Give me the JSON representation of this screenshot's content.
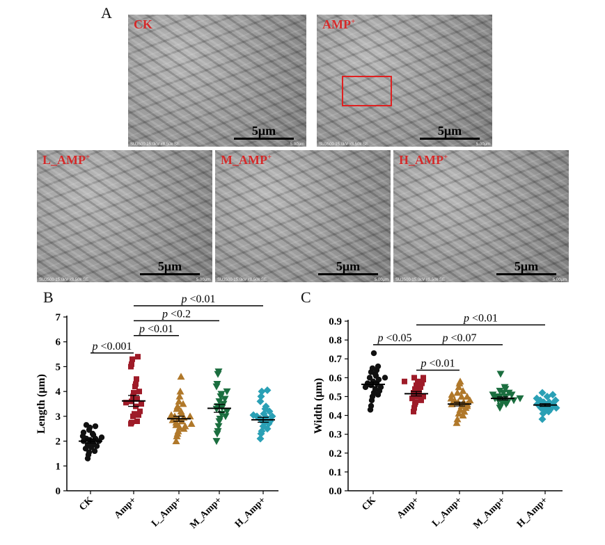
{
  "panels": {
    "A": "A",
    "B": "B",
    "C": "C"
  },
  "sem_images": [
    {
      "label": "CK",
      "sup": "",
      "scale": "5μm",
      "info_left": "SU3500 15.0kV x8.50k SE",
      "info_right": "5.00μm"
    },
    {
      "label": "AMP",
      "sup": "+",
      "scale": "5μm",
      "info_left": "SU3500 15.0kV x8.50k SE",
      "info_right": "5.00μm"
    },
    {
      "label": "L_AMP",
      "sup": "+",
      "scale": "5μm",
      "info_left": "SU3500 15.0kV x8.50k SE",
      "info_right": "5.00μm"
    },
    {
      "label": "M_AMP",
      "sup": "+",
      "scale": "5μm",
      "info_left": "SU3500 15.0kV x8.50k SE",
      "info_right": "5.00μm"
    },
    {
      "label": "H_AMP",
      "sup": "+",
      "scale": "5μm",
      "info_left": "SU3500 15.0kV x8.50k SE",
      "info_right": "5.00μm"
    }
  ],
  "colors": {
    "CK": "#111111",
    "Amp+": "#9e1b28",
    "L_Amp+": "#b0782a",
    "M_Amp+": "#1b6e3f",
    "H_Amp+": "#2aa0b5",
    "label_red": "#d42a2a"
  },
  "chart_data": [
    {
      "type": "scatter",
      "panel": "B",
      "ylabel": "Length (μm)",
      "ylim": [
        0,
        7
      ],
      "yticks": [
        "0",
        "1",
        "2",
        "3",
        "4",
        "5",
        "6",
        "7"
      ],
      "categories": [
        "CK",
        "Amp+",
        "L_Amp+",
        "M_Amp+",
        "H_Amp+"
      ],
      "markers": [
        "circle",
        "square",
        "triangle-up",
        "triangle-down",
        "diamond"
      ],
      "means": [
        2.0,
        3.62,
        2.9,
        3.32,
        2.86
      ],
      "sem": [
        0.08,
        0.22,
        0.1,
        0.16,
        0.1
      ],
      "series": [
        {
          "values": [
            1.3,
            1.45,
            1.55,
            1.6,
            1.7,
            1.75,
            1.8,
            1.85,
            1.9,
            1.95,
            2.0,
            2.0,
            2.05,
            2.1,
            2.1,
            2.15,
            2.2,
            2.25,
            2.3,
            2.35,
            2.45,
            2.55,
            2.6,
            2.65
          ]
        },
        {
          "values": [
            2.7,
            2.75,
            2.8,
            3.0,
            3.05,
            3.1,
            3.2,
            3.4,
            3.5,
            3.55,
            3.6,
            3.7,
            3.8,
            3.95,
            4.0,
            4.2,
            4.3,
            4.5,
            5.0,
            5.1,
            5.3,
            5.4
          ]
        },
        {
          "values": [
            2.0,
            2.2,
            2.3,
            2.4,
            2.5,
            2.55,
            2.6,
            2.65,
            2.7,
            2.75,
            2.8,
            2.85,
            2.9,
            2.95,
            3.0,
            3.0,
            3.05,
            3.1,
            3.2,
            3.3,
            3.4,
            3.5,
            3.6,
            3.8,
            4.0,
            4.6
          ]
        },
        {
          "values": [
            2.0,
            2.3,
            2.4,
            2.6,
            2.8,
            2.9,
            3.0,
            3.1,
            3.2,
            3.3,
            3.35,
            3.4,
            3.5,
            3.6,
            3.7,
            3.8,
            3.9,
            4.0,
            4.2,
            4.3,
            4.7,
            4.8
          ]
        },
        {
          "values": [
            2.1,
            2.3,
            2.4,
            2.5,
            2.6,
            2.7,
            2.75,
            2.8,
            2.85,
            2.9,
            2.95,
            3.0,
            3.0,
            3.05,
            3.1,
            3.2,
            3.3,
            3.4,
            3.6,
            3.8,
            4.0,
            4.05
          ]
        }
      ],
      "annotations": [
        {
          "text": "<0.001",
          "from": 0,
          "to": 1,
          "y": 5.55
        },
        {
          "text": "<0.01",
          "from": 1,
          "to": 2,
          "y": 6.25
        },
        {
          "text": "<0.2",
          "from": 1,
          "to": 3,
          "y": 6.85
        },
        {
          "text": "<0.01",
          "from": 1,
          "to": 4,
          "y": 7.45
        }
      ],
      "p_symbol": "p"
    },
    {
      "type": "scatter",
      "panel": "C",
      "ylabel": "Width (μm)",
      "ylim": [
        0,
        0.9
      ],
      "yticks": [
        "0.0",
        "0.1",
        "0.2",
        "0.3",
        "0.4",
        "0.5",
        "0.6",
        "0.7",
        "0.8",
        "0.9"
      ],
      "categories": [
        "CK",
        "Amp+",
        "L_Amp+",
        "M_Amp+",
        "H_Amp+"
      ],
      "markers": [
        "circle",
        "square",
        "triangle-up",
        "triangle-down",
        "diamond"
      ],
      "means": [
        0.565,
        0.515,
        0.46,
        0.49,
        0.455
      ],
      "sem": [
        0.012,
        0.012,
        0.01,
        0.008,
        0.007
      ],
      "series": [
        {
          "values": [
            0.43,
            0.45,
            0.48,
            0.5,
            0.51,
            0.52,
            0.53,
            0.54,
            0.55,
            0.55,
            0.56,
            0.57,
            0.57,
            0.58,
            0.59,
            0.6,
            0.6,
            0.61,
            0.62,
            0.63,
            0.64,
            0.65,
            0.66,
            0.73
          ]
        },
        {
          "values": [
            0.42,
            0.44,
            0.46,
            0.47,
            0.48,
            0.49,
            0.5,
            0.5,
            0.51,
            0.52,
            0.53,
            0.54,
            0.55,
            0.56,
            0.57,
            0.58,
            0.59,
            0.6,
            0.6,
            0.58
          ]
        },
        {
          "values": [
            0.36,
            0.38,
            0.4,
            0.41,
            0.42,
            0.43,
            0.44,
            0.45,
            0.45,
            0.46,
            0.46,
            0.47,
            0.47,
            0.48,
            0.48,
            0.49,
            0.5,
            0.5,
            0.51,
            0.52,
            0.53,
            0.55,
            0.57,
            0.58
          ]
        },
        {
          "values": [
            0.44,
            0.45,
            0.46,
            0.47,
            0.47,
            0.48,
            0.48,
            0.49,
            0.49,
            0.5,
            0.5,
            0.5,
            0.51,
            0.51,
            0.52,
            0.52,
            0.53,
            0.54,
            0.55,
            0.62
          ]
        },
        {
          "values": [
            0.38,
            0.41,
            0.42,
            0.43,
            0.43,
            0.44,
            0.44,
            0.45,
            0.45,
            0.46,
            0.46,
            0.47,
            0.47,
            0.48,
            0.48,
            0.49,
            0.5,
            0.51,
            0.52
          ]
        }
      ],
      "annotations": [
        {
          "text": "<0.05",
          "from": 0,
          "to": 1,
          "y": 0.775
        },
        {
          "text": "<0.01",
          "from": 1,
          "to": 2,
          "y": 0.64
        },
        {
          "text": "<0.07",
          "from": 1,
          "to": 3,
          "y": 0.775
        },
        {
          "text": "<0.01",
          "from": 1,
          "to": 4,
          "y": 0.88
        }
      ],
      "p_symbol": "p"
    }
  ]
}
